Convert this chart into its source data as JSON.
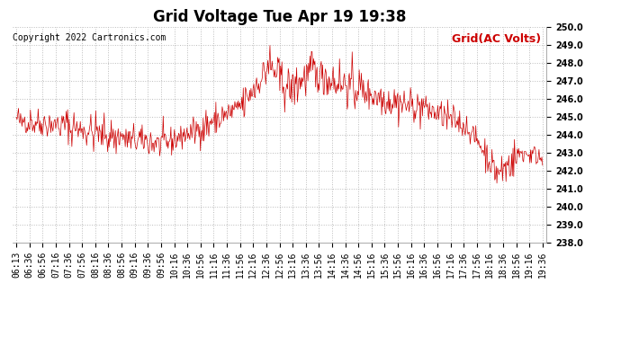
{
  "title": "Grid Voltage Tue Apr 19 19:38",
  "legend_label": "Grid(AC Volts)",
  "copyright": "Copyright 2022 Cartronics.com",
  "line_color": "#cc0000",
  "legend_color": "#cc0000",
  "copyright_color": "#000000",
  "background_color": "#ffffff",
  "grid_color": "#aaaaaa",
  "ylim": [
    238.0,
    250.0
  ],
  "yticks": [
    238.0,
    239.0,
    240.0,
    241.0,
    242.0,
    243.0,
    244.0,
    245.0,
    246.0,
    247.0,
    248.0,
    249.0,
    250.0
  ],
  "xtick_labels": [
    "06:13",
    "06:36",
    "06:56",
    "07:16",
    "07:36",
    "07:56",
    "08:16",
    "08:36",
    "08:56",
    "09:16",
    "09:36",
    "09:56",
    "10:16",
    "10:36",
    "10:56",
    "11:16",
    "11:36",
    "11:56",
    "12:16",
    "12:36",
    "12:56",
    "13:16",
    "13:36",
    "13:56",
    "14:16",
    "14:36",
    "14:56",
    "15:16",
    "15:36",
    "15:56",
    "16:16",
    "16:36",
    "16:56",
    "17:16",
    "17:36",
    "17:56",
    "18:16",
    "18:36",
    "18:56",
    "19:16",
    "19:36"
  ],
  "title_fontsize": 12,
  "tick_fontsize": 7,
  "copyright_fontsize": 7,
  "legend_fontsize": 9
}
